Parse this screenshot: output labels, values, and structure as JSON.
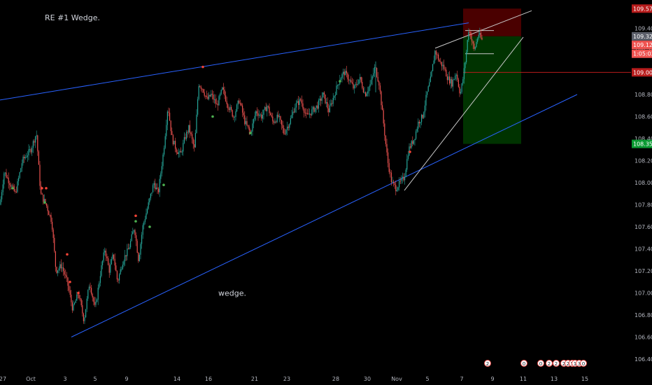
{
  "chart_data": {
    "type": "candlestick",
    "title": "",
    "xlabel": "",
    "ylabel": "",
    "ylim": [
      106.35,
      109.65
    ],
    "colors": {
      "up": "#26a69a",
      "down": "#ef5350",
      "trendline": "#2962ff",
      "channel": "#c8c8c8",
      "stop_zone": "#4a0000",
      "target_zone": "#003300",
      "entry_line": "#b71c1c",
      "background": "#000000",
      "signal_up": "#4caf50",
      "signal_down": "#f44336"
    },
    "x_ticks": [
      "27",
      "Oct",
      "3",
      "5",
      "9",
      "14",
      "16",
      "21",
      "23",
      "28",
      "30",
      "Nov",
      "5",
      "7",
      "9",
      "11",
      "13",
      "15"
    ],
    "y_ticks": [
      "109.400",
      "109.200",
      "108.800",
      "108.600",
      "108.400",
      "108.200",
      "108.000",
      "107.800",
      "107.600",
      "107.400",
      "107.200",
      "107.000",
      "106.800",
      "106.600",
      "106.400"
    ],
    "price_tags": [
      {
        "label": "109.579",
        "value": 109.579,
        "color": "#b71c1c"
      },
      {
        "label": "109.328",
        "value": 109.328,
        "color": "#5d606b"
      },
      {
        "label": "109.129",
        "value": 109.25,
        "color": "#ef5350"
      },
      {
        "label": "1:05:02",
        "value": 109.17,
        "color": "#ef5350"
      },
      {
        "label": "109.001",
        "value": 109.001,
        "color": "#b71c1c"
      },
      {
        "label": "108.352",
        "value": 108.352,
        "color": "#0a9a32"
      }
    ],
    "annotations": [
      {
        "text": "RE #1 Wedge.",
        "x": "5",
        "y": 109.5
      },
      {
        "text": "wedge.",
        "x": "16",
        "y": 107.0
      }
    ],
    "events": [
      "2",
      "0",
      "0",
      "2",
      "2",
      "2",
      "2",
      "5",
      "1",
      "3",
      "0"
    ],
    "price_path": [
      [
        0,
        107.8
      ],
      [
        6,
        108.1
      ],
      [
        14,
        108.0
      ],
      [
        22,
        107.9
      ],
      [
        32,
        108.2
      ],
      [
        44,
        108.3
      ],
      [
        52,
        108.45
      ],
      [
        58,
        107.9
      ],
      [
        66,
        107.8
      ],
      [
        74,
        107.65
      ],
      [
        80,
        107.2
      ],
      [
        88,
        107.25
      ],
      [
        96,
        107.1
      ],
      [
        104,
        106.85
      ],
      [
        112,
        107.0
      ],
      [
        120,
        106.75
      ],
      [
        128,
        107.1
      ],
      [
        136,
        106.85
      ],
      [
        144,
        107.2
      ],
      [
        150,
        107.4
      ],
      [
        156,
        107.2
      ],
      [
        162,
        107.35
      ],
      [
        168,
        107.1
      ],
      [
        176,
        107.3
      ],
      [
        184,
        107.4
      ],
      [
        192,
        107.6
      ],
      [
        198,
        107.3
      ],
      [
        204,
        107.6
      ],
      [
        212,
        107.8
      ],
      [
        220,
        108.0
      ],
      [
        226,
        107.9
      ],
      [
        234,
        108.3
      ],
      [
        240,
        108.7
      ],
      [
        246,
        108.4
      ],
      [
        252,
        108.3
      ],
      [
        258,
        108.25
      ],
      [
        264,
        108.4
      ],
      [
        270,
        108.5
      ],
      [
        278,
        108.3
      ],
      [
        284,
        108.9
      ],
      [
        290,
        108.85
      ],
      [
        296,
        108.75
      ],
      [
        302,
        108.8
      ],
      [
        310,
        108.7
      ],
      [
        318,
        108.85
      ],
      [
        326,
        108.7
      ],
      [
        334,
        108.6
      ],
      [
        342,
        108.75
      ],
      [
        350,
        108.55
      ],
      [
        358,
        108.45
      ],
      [
        366,
        108.65
      ],
      [
        374,
        108.6
      ],
      [
        382,
        108.7
      ],
      [
        390,
        108.55
      ],
      [
        398,
        108.6
      ],
      [
        406,
        108.45
      ],
      [
        414,
        108.55
      ],
      [
        422,
        108.7
      ],
      [
        430,
        108.75
      ],
      [
        438,
        108.6
      ],
      [
        446,
        108.65
      ],
      [
        454,
        108.7
      ],
      [
        462,
        108.8
      ],
      [
        470,
        108.65
      ],
      [
        478,
        108.8
      ],
      [
        486,
        108.95
      ],
      [
        492,
        109.0
      ],
      [
        498,
        108.95
      ],
      [
        506,
        108.85
      ],
      [
        514,
        108.95
      ],
      [
        522,
        108.8
      ],
      [
        530,
        108.9
      ],
      [
        536,
        109.05
      ],
      [
        542,
        108.9
      ],
      [
        548,
        108.55
      ],
      [
        554,
        108.2
      ],
      [
        560,
        108.0
      ],
      [
        566,
        107.95
      ],
      [
        572,
        108.0
      ],
      [
        578,
        108.05
      ],
      [
        584,
        108.3
      ],
      [
        592,
        108.4
      ],
      [
        598,
        108.55
      ],
      [
        604,
        108.6
      ],
      [
        610,
        108.8
      ],
      [
        616,
        108.95
      ],
      [
        622,
        109.2
      ],
      [
        628,
        109.1
      ],
      [
        634,
        109.05
      ],
      [
        640,
        108.95
      ],
      [
        646,
        108.9
      ],
      [
        652,
        109.0
      ],
      [
        658,
        108.8
      ],
      [
        662,
        108.95
      ],
      [
        666,
        109.15
      ],
      [
        670,
        109.4
      ],
      [
        674,
        109.3
      ],
      [
        678,
        109.2
      ],
      [
        684,
        109.35
      ],
      [
        690,
        109.28
      ]
    ],
    "wedge_main": {
      "upper": [
        [
          0,
          108.75
        ],
        [
          670,
          109.45
        ]
      ],
      "lower": [
        [
          102,
          106.6
        ],
        [
          825,
          108.8
        ]
      ]
    },
    "wedge_small": {
      "upper": [
        [
          622,
          109.22
        ],
        [
          760,
          109.56
        ]
      ],
      "lower": [
        [
          578,
          107.93
        ],
        [
          748,
          109.32
        ]
      ]
    },
    "signals_up": [
      [
        18,
        107.95
      ],
      [
        64,
        107.82
      ],
      [
        194,
        107.65
      ],
      [
        214,
        107.6
      ],
      [
        234,
        107.98
      ],
      [
        304,
        108.6
      ],
      [
        358,
        108.45
      ],
      [
        486,
        108.92
      ]
    ],
    "signals_down": [
      [
        60,
        107.95
      ],
      [
        66,
        107.95
      ],
      [
        96,
        107.35
      ],
      [
        100,
        107.1
      ],
      [
        112,
        107.0
      ],
      [
        194,
        107.7
      ],
      [
        290,
        109.05
      ],
      [
        586,
        108.28
      ]
    ]
  }
}
